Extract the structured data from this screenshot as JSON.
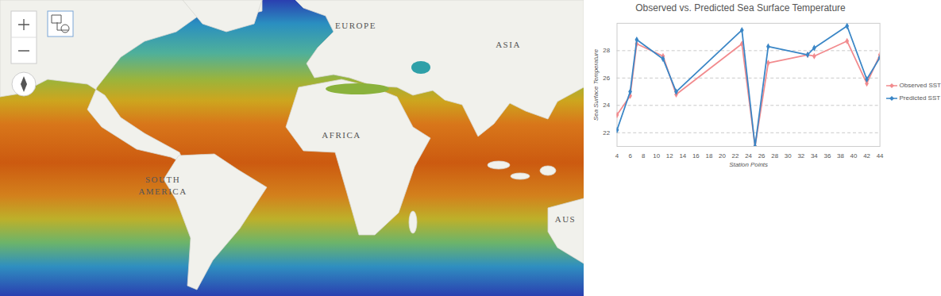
{
  "map": {
    "labels": [
      "EUROPE",
      "ASIA",
      "AFRICA",
      "SOUTH AMERICA",
      "AUS"
    ]
  },
  "chart_data": {
    "type": "line",
    "title": "Observed vs. Predicted Sea Surface Temperature",
    "x_label": "Station Points",
    "y_label": "Sea Surface Temperature",
    "x": [
      4,
      6,
      7,
      11,
      13,
      23,
      25,
      27,
      33,
      34,
      39,
      42,
      44
    ],
    "series": [
      {
        "name": "Observed SST",
        "color": "#f28b8e",
        "marker": "diamond",
        "values": [
          23.3,
          24.7,
          28.5,
          27.6,
          24.8,
          28.5,
          21.0,
          27.1,
          27.7,
          27.6,
          28.7,
          25.6,
          27.7
        ]
      },
      {
        "name": "Predicted SST",
        "color": "#3a86c6",
        "marker": "diamond",
        "values": [
          22.2,
          25.0,
          28.8,
          27.4,
          25.0,
          29.5,
          21.0,
          28.3,
          27.7,
          28.2,
          29.8,
          25.9,
          27.5
        ]
      }
    ],
    "xlim": [
      4,
      44
    ],
    "xticks": [
      4,
      6,
      8,
      10,
      12,
      14,
      16,
      18,
      20,
      22,
      24,
      26,
      28,
      30,
      32,
      34,
      36,
      38,
      40,
      42,
      44
    ],
    "ylim": [
      21,
      30
    ],
    "yticks": [
      22,
      24,
      26,
      28
    ],
    "grid": true,
    "legend": "right"
  }
}
